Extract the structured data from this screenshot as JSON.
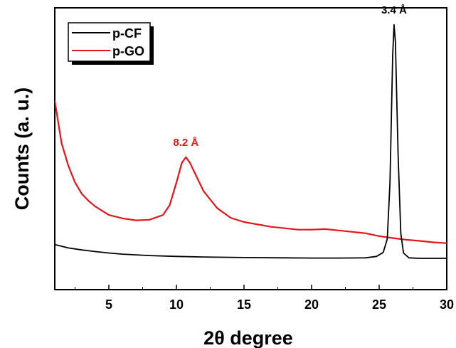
{
  "chart_data": {
    "type": "line",
    "xlabel": "2θ degree",
    "ylabel": "Counts (a. u.)",
    "title": "",
    "xlim": [
      1,
      30
    ],
    "ylim": [
      0,
      100
    ],
    "xticks": [
      5,
      10,
      15,
      20,
      25,
      30
    ],
    "xtick_labels": [
      "5",
      "10",
      "15",
      "20",
      "25",
      "30"
    ],
    "y_tick_labels_shown": false,
    "grid": false,
    "legend": {
      "placement": "top-left",
      "entries": [
        "p-CF",
        "p-GO"
      ]
    },
    "series": [
      {
        "name": "p-CF",
        "color": "#000000",
        "x": [
          1,
          2,
          3,
          4,
          5,
          6,
          8,
          10,
          12,
          15,
          18,
          20,
          22,
          24,
          24.8,
          25.3,
          25.6,
          25.8,
          26.0,
          26.1,
          26.2,
          26.4,
          26.6,
          26.8,
          27.2,
          28,
          30
        ],
        "y": [
          16,
          14.8,
          14.1,
          13.5,
          13,
          12.6,
          12.1,
          11.8,
          11.6,
          11.4,
          11.3,
          11.2,
          11.2,
          11.3,
          11.8,
          13.2,
          18,
          38,
          83,
          94,
          88,
          48,
          20,
          13,
          11.3,
          11.1,
          11.1
        ]
      },
      {
        "name": "p-GO",
        "color": "#e8141a",
        "x": [
          1,
          1.5,
          2,
          2.5,
          3,
          3.5,
          4,
          5,
          6,
          7,
          8,
          9,
          9.5,
          10,
          10.4,
          10.7,
          11,
          11.5,
          12,
          13,
          14,
          15,
          17,
          19,
          20,
          21,
          22,
          23,
          24,
          25,
          26,
          27,
          28,
          29,
          30
        ],
        "y": [
          67,
          52,
          44,
          38,
          34,
          31.5,
          29.5,
          26.5,
          25.3,
          24.6,
          24.8,
          26.5,
          30,
          38,
          45,
          47,
          45,
          40,
          35,
          29,
          25.5,
          24,
          22.3,
          21.3,
          21.3,
          21.5,
          21,
          20.5,
          20,
          19,
          18.3,
          17.7,
          17.3,
          16.8,
          16.5
        ]
      }
    ],
    "annotations": [
      {
        "text": "8.2 Å",
        "x": 10.7,
        "y": 47,
        "color": "#e8141a"
      },
      {
        "text": "3.4 Å",
        "x": 26.1,
        "y": 94,
        "color": "#000000"
      }
    ]
  }
}
